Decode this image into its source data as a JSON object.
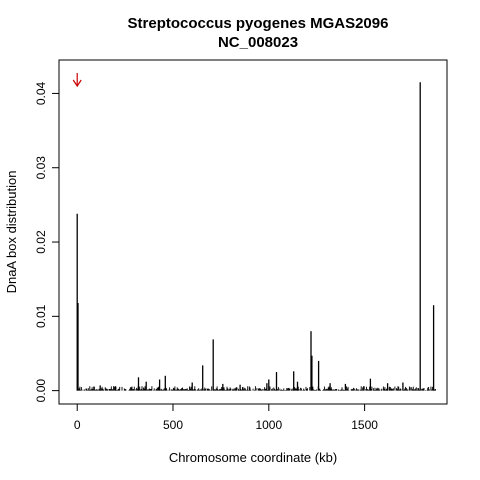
{
  "chart_data": {
    "type": "bar",
    "title": "Streptococcus pyogenes MGAS2096",
    "subtitle": "NC_008023",
    "xlabel": "Chromosome coordinate (kb)",
    "ylabel": "DnaA box distribution",
    "xlim": [
      -95,
      1930
    ],
    "ylim": [
      -0.0018,
      0.0445
    ],
    "x_ticks": [
      0,
      500,
      1000,
      1500
    ],
    "y_ticks": [
      0.0,
      0.01,
      0.02,
      0.03,
      0.04
    ],
    "y_tick_labels": [
      "0.00",
      "0.01",
      "0.02",
      "0.03",
      "0.04"
    ],
    "grid": false,
    "colors": {
      "bars": "#000000",
      "marker": "#cc0000"
    },
    "origin_marker": {
      "x": 0,
      "icon": "down-arrow-icon"
    },
    "series": [
      {
        "x": [
          0,
          4,
          710,
          655,
          1220,
          1225,
          1260,
          1130,
          1040,
          1790,
          1860,
          320,
          360,
          430,
          460,
          1530,
          1000,
          990,
          600,
          850,
          1150,
          1320,
          1400,
          1700,
          1620,
          200,
          120,
          760
        ],
        "values": [
          0.0238,
          0.0118,
          0.0069,
          0.0034,
          0.008,
          0.0047,
          0.004,
          0.0026,
          0.0025,
          0.0415,
          0.0115,
          0.0018,
          0.0012,
          0.0015,
          0.002,
          0.0016,
          0.0015,
          0.001,
          0.0011,
          0.0008,
          0.0012,
          0.001,
          0.0009,
          0.0011,
          0.001,
          0.0006,
          0.0007,
          0.0009
        ]
      }
    ]
  }
}
